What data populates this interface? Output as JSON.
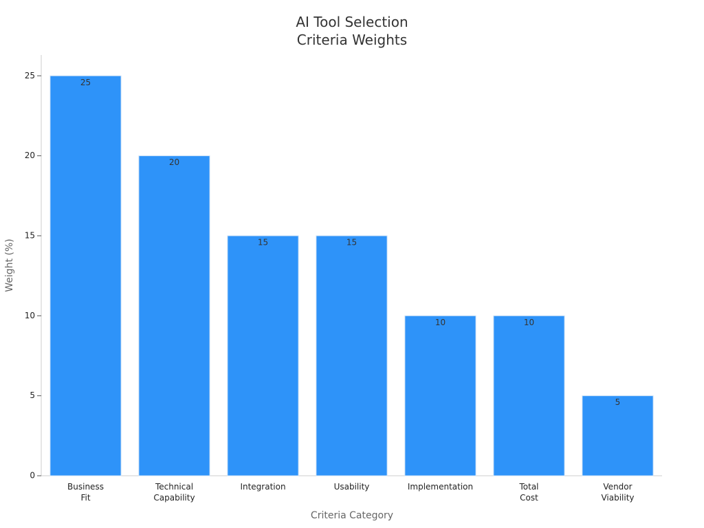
{
  "chart_data": {
    "type": "bar",
    "title": "AI Tool Selection\nCriteria Weights",
    "x_label": "Criteria Category",
    "y_label": "Weight (%)",
    "categories": [
      "Business\nFit",
      "Technical\nCapability",
      "Integration",
      "Usability",
      "Implementation",
      "Total\nCost",
      "Vendor\nViability"
    ],
    "values": [
      25,
      20,
      15,
      15,
      10,
      10,
      5
    ],
    "color": "#2e93f9",
    "ylim": [
      0,
      26.3
    ],
    "yticks": [
      0,
      5,
      10,
      15,
      20,
      25
    ],
    "grid": false
  }
}
